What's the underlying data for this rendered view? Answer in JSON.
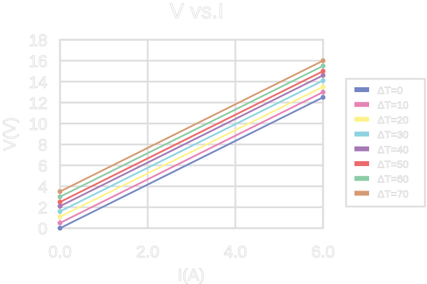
{
  "chart_data": {
    "type": "line",
    "title": "V vs.I",
    "xlabel": "I(A)",
    "ylabel": "V(V)",
    "xlim": [
      0,
      6
    ],
    "ylim": [
      0,
      18
    ],
    "xticks": [
      "0.0",
      "2.0",
      "4.0",
      "6.0"
    ],
    "yticks": [
      "0",
      "2",
      "4",
      "6",
      "8",
      "10",
      "12",
      "14",
      "16",
      "18"
    ],
    "grid": true,
    "legend_position": "right",
    "x": [
      0,
      6
    ],
    "series": [
      {
        "name": "ΔT=0",
        "color": "#7486c4",
        "values": [
          0.0,
          12.5
        ]
      },
      {
        "name": "ΔT=10",
        "color": "#e584b4",
        "values": [
          0.5,
          13.0
        ]
      },
      {
        "name": "ΔT=20",
        "color": "#fdf28a",
        "values": [
          1.1,
          13.5
        ]
      },
      {
        "name": "ΔT=30",
        "color": "#8dd2e2",
        "values": [
          1.6,
          14.1
        ]
      },
      {
        "name": "ΔT=40",
        "color": "#a679b4",
        "values": [
          2.1,
          14.6
        ]
      },
      {
        "name": "ΔT=50",
        "color": "#ec6a6a",
        "values": [
          2.5,
          15.0
        ]
      },
      {
        "name": "ΔT=60",
        "color": "#8ccca7",
        "values": [
          3.0,
          15.5
        ]
      },
      {
        "name": "ΔT=70",
        "color": "#d69a72",
        "values": [
          3.5,
          16.0
        ]
      }
    ]
  }
}
